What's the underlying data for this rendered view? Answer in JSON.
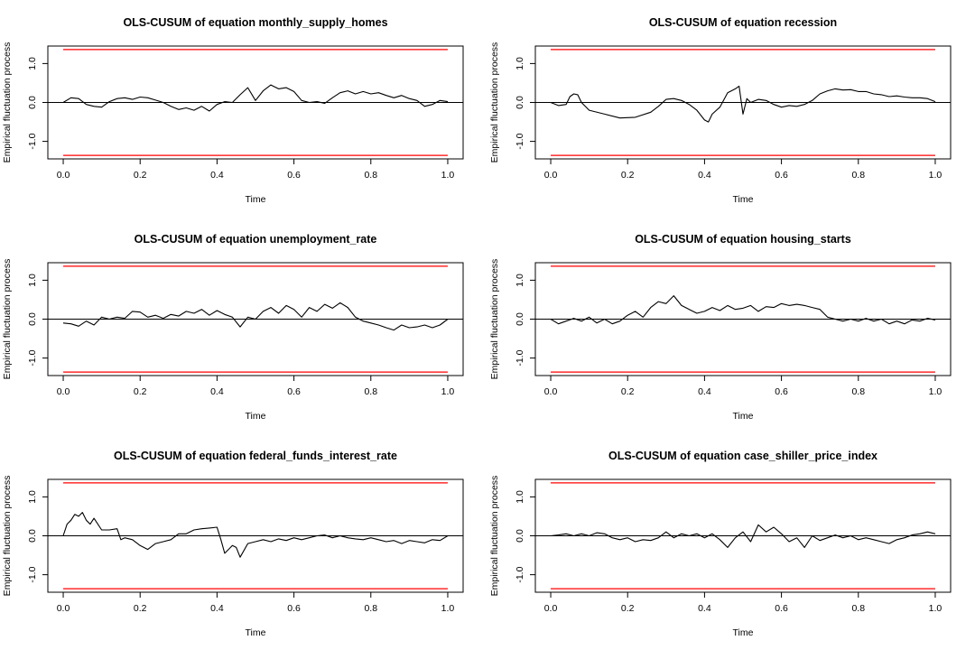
{
  "chart_data": [
    {
      "type": "line",
      "title": "OLS-CUSUM of equation monthly_supply_homes",
      "xlabel": "Time",
      "ylabel": "Empirical fluctuation process",
      "xlim": [
        0,
        1
      ],
      "ylim": [
        -1.45,
        1.45
      ],
      "x_ticks": [
        "0.0",
        "0.2",
        "0.4",
        "0.6",
        "0.8",
        "1.0"
      ],
      "y_ticks": [
        "-1.0",
        "0.0",
        "1.0"
      ],
      "boundary": 1.36,
      "boundary_color": "#ff0000",
      "line_color": "#000000",
      "series": [
        {
          "x": [
            0,
            0.02,
            0.04,
            0.06,
            0.08,
            0.1,
            0.12,
            0.14,
            0.16,
            0.18,
            0.2,
            0.22,
            0.24,
            0.26,
            0.28,
            0.3,
            0.32,
            0.34,
            0.36,
            0.38,
            0.4,
            0.42,
            0.44,
            0.46,
            0.48,
            0.5,
            0.52,
            0.54,
            0.56,
            0.58,
            0.6,
            0.62,
            0.64,
            0.66,
            0.68,
            0.7,
            0.72,
            0.74,
            0.76,
            0.78,
            0.8,
            0.82,
            0.84,
            0.86,
            0.88,
            0.9,
            0.92,
            0.94,
            0.96,
            0.98,
            1.0
          ],
          "values": [
            0,
            0.12,
            0.1,
            -0.05,
            -0.1,
            -0.12,
            0.02,
            0.1,
            0.12,
            0.08,
            0.14,
            0.12,
            0.06,
            0.0,
            -0.1,
            -0.18,
            -0.14,
            -0.2,
            -0.1,
            -0.22,
            -0.05,
            0.02,
            0.0,
            0.2,
            0.38,
            0.05,
            0.3,
            0.45,
            0.35,
            0.38,
            0.28,
            0.05,
            0.0,
            0.02,
            -0.02,
            0.12,
            0.25,
            0.3,
            0.22,
            0.28,
            0.22,
            0.25,
            0.18,
            0.12,
            0.18,
            0.1,
            0.05,
            -0.1,
            -0.05,
            0.05,
            0.02
          ]
        }
      ]
    },
    {
      "type": "line",
      "title": "OLS-CUSUM of equation recession",
      "xlabel": "Time",
      "ylabel": "Empirical fluctuation process",
      "xlim": [
        0,
        1
      ],
      "ylim": [
        -1.45,
        1.45
      ],
      "x_ticks": [
        "0.0",
        "0.2",
        "0.4",
        "0.6",
        "0.8",
        "1.0"
      ],
      "y_ticks": [
        "-1.0",
        "0.0",
        "1.0"
      ],
      "boundary": 1.36,
      "boundary_color": "#ff0000",
      "line_color": "#000000",
      "series": [
        {
          "x": [
            0,
            0.02,
            0.04,
            0.05,
            0.06,
            0.07,
            0.08,
            0.1,
            0.14,
            0.18,
            0.22,
            0.26,
            0.28,
            0.3,
            0.32,
            0.34,
            0.36,
            0.38,
            0.4,
            0.41,
            0.42,
            0.44,
            0.46,
            0.48,
            0.49,
            0.5,
            0.51,
            0.52,
            0.54,
            0.56,
            0.58,
            0.6,
            0.62,
            0.64,
            0.66,
            0.68,
            0.7,
            0.72,
            0.74,
            0.76,
            0.78,
            0.8,
            0.82,
            0.84,
            0.86,
            0.88,
            0.9,
            0.92,
            0.94,
            0.96,
            0.98,
            1.0
          ],
          "values": [
            0,
            -0.08,
            -0.05,
            0.15,
            0.22,
            0.2,
            0.0,
            -0.2,
            -0.3,
            -0.4,
            -0.38,
            -0.25,
            -0.1,
            0.08,
            0.1,
            0.05,
            -0.05,
            -0.2,
            -0.45,
            -0.5,
            -0.3,
            -0.12,
            0.25,
            0.35,
            0.42,
            -0.3,
            0.1,
            0.0,
            0.08,
            0.05,
            -0.05,
            -0.12,
            -0.08,
            -0.1,
            -0.05,
            0.05,
            0.22,
            0.3,
            0.35,
            0.32,
            0.33,
            0.28,
            0.28,
            0.22,
            0.2,
            0.15,
            0.17,
            0.14,
            0.12,
            0.12,
            0.1,
            0.02
          ]
        }
      ]
    },
    {
      "type": "line",
      "title": "OLS-CUSUM of equation unemployment_rate",
      "xlabel": "Time",
      "ylabel": "Empirical fluctuation process",
      "xlim": [
        0,
        1
      ],
      "ylim": [
        -1.45,
        1.45
      ],
      "x_ticks": [
        "0.0",
        "0.2",
        "0.4",
        "0.6",
        "0.8",
        "1.0"
      ],
      "y_ticks": [
        "-1.0",
        "0.0",
        "1.0"
      ],
      "boundary": 1.36,
      "boundary_color": "#ff0000",
      "line_color": "#000000",
      "series": [
        {
          "x": [
            0,
            0.02,
            0.04,
            0.06,
            0.08,
            0.1,
            0.12,
            0.14,
            0.16,
            0.18,
            0.2,
            0.22,
            0.24,
            0.26,
            0.28,
            0.3,
            0.32,
            0.34,
            0.36,
            0.38,
            0.4,
            0.42,
            0.44,
            0.46,
            0.48,
            0.5,
            0.52,
            0.54,
            0.56,
            0.58,
            0.6,
            0.62,
            0.64,
            0.66,
            0.68,
            0.7,
            0.72,
            0.74,
            0.76,
            0.78,
            0.8,
            0.82,
            0.84,
            0.86,
            0.88,
            0.9,
            0.92,
            0.94,
            0.96,
            0.98,
            1.0
          ],
          "values": [
            -0.1,
            -0.12,
            -0.18,
            -0.05,
            -0.15,
            0.05,
            0.0,
            0.05,
            0.02,
            0.2,
            0.18,
            0.05,
            0.1,
            0.02,
            0.12,
            0.08,
            0.2,
            0.15,
            0.25,
            0.1,
            0.22,
            0.12,
            0.05,
            -0.2,
            0.05,
            0.0,
            0.2,
            0.3,
            0.15,
            0.35,
            0.25,
            0.05,
            0.3,
            0.2,
            0.38,
            0.28,
            0.42,
            0.3,
            0.05,
            -0.05,
            -0.1,
            -0.15,
            -0.22,
            -0.28,
            -0.15,
            -0.22,
            -0.2,
            -0.15,
            -0.22,
            -0.15,
            0.0
          ]
        }
      ]
    },
    {
      "type": "line",
      "title": "OLS-CUSUM of equation housing_starts",
      "xlabel": "Time",
      "ylabel": "Empirical fluctuation process",
      "xlim": [
        0,
        1
      ],
      "ylim": [
        -1.45,
        1.45
      ],
      "x_ticks": [
        "0.0",
        "0.2",
        "0.4",
        "0.6",
        "0.8",
        "1.0"
      ],
      "y_ticks": [
        "-1.0",
        "0.0",
        "1.0"
      ],
      "boundary": 1.36,
      "boundary_color": "#ff0000",
      "line_color": "#000000",
      "series": [
        {
          "x": [
            0,
            0.02,
            0.04,
            0.06,
            0.08,
            0.1,
            0.12,
            0.14,
            0.16,
            0.18,
            0.2,
            0.22,
            0.24,
            0.26,
            0.28,
            0.3,
            0.32,
            0.34,
            0.36,
            0.38,
            0.4,
            0.42,
            0.44,
            0.46,
            0.48,
            0.5,
            0.52,
            0.54,
            0.56,
            0.58,
            0.6,
            0.62,
            0.64,
            0.66,
            0.68,
            0.7,
            0.72,
            0.74,
            0.76,
            0.78,
            0.8,
            0.82,
            0.84,
            0.86,
            0.88,
            0.9,
            0.92,
            0.94,
            0.96,
            0.98,
            1.0
          ],
          "values": [
            0,
            -0.12,
            -0.05,
            0.02,
            -0.05,
            0.05,
            -0.1,
            0.0,
            -0.12,
            -0.05,
            0.1,
            0.2,
            0.05,
            0.3,
            0.45,
            0.4,
            0.6,
            0.35,
            0.25,
            0.15,
            0.2,
            0.3,
            0.22,
            0.35,
            0.25,
            0.28,
            0.35,
            0.2,
            0.32,
            0.3,
            0.4,
            0.35,
            0.38,
            0.35,
            0.3,
            0.25,
            0.05,
            0.0,
            -0.05,
            0.0,
            -0.05,
            0.02,
            -0.05,
            0.0,
            -0.12,
            -0.05,
            -0.12,
            -0.02,
            -0.05,
            0.02,
            -0.02
          ]
        }
      ]
    },
    {
      "type": "line",
      "title": "OLS-CUSUM of equation federal_funds_interest_rate",
      "xlabel": "Time",
      "ylabel": "Empirical fluctuation process",
      "xlim": [
        0,
        1
      ],
      "ylim": [
        -1.45,
        1.45
      ],
      "x_ticks": [
        "0.0",
        "0.2",
        "0.4",
        "0.6",
        "0.8",
        "1.0"
      ],
      "y_ticks": [
        "-1.0",
        "0.0",
        "1.0"
      ],
      "boundary": 1.36,
      "boundary_color": "#ff0000",
      "line_color": "#000000",
      "series": [
        {
          "x": [
            0,
            0.01,
            0.02,
            0.03,
            0.04,
            0.05,
            0.06,
            0.07,
            0.08,
            0.1,
            0.12,
            0.14,
            0.15,
            0.16,
            0.18,
            0.2,
            0.22,
            0.24,
            0.26,
            0.28,
            0.3,
            0.32,
            0.34,
            0.36,
            0.38,
            0.4,
            0.41,
            0.42,
            0.44,
            0.45,
            0.46,
            0.48,
            0.5,
            0.52,
            0.54,
            0.56,
            0.58,
            0.6,
            0.62,
            0.64,
            0.66,
            0.68,
            0.7,
            0.72,
            0.74,
            0.76,
            0.78,
            0.8,
            0.82,
            0.84,
            0.86,
            0.88,
            0.9,
            0.92,
            0.94,
            0.96,
            0.98,
            1.0
          ],
          "values": [
            0,
            0.3,
            0.4,
            0.55,
            0.5,
            0.6,
            0.4,
            0.3,
            0.45,
            0.15,
            0.15,
            0.18,
            -0.1,
            -0.05,
            -0.1,
            -0.25,
            -0.35,
            -0.2,
            -0.15,
            -0.1,
            0.05,
            0.05,
            0.15,
            0.18,
            0.2,
            0.22,
            -0.1,
            -0.45,
            -0.25,
            -0.3,
            -0.55,
            -0.2,
            -0.15,
            -0.1,
            -0.15,
            -0.08,
            -0.12,
            -0.05,
            -0.1,
            -0.05,
            0.0,
            0.02,
            -0.05,
            0.0,
            -0.05,
            -0.08,
            -0.1,
            -0.05,
            -0.1,
            -0.15,
            -0.12,
            -0.2,
            -0.12,
            -0.15,
            -0.18,
            -0.1,
            -0.12,
            0.0
          ]
        }
      ]
    },
    {
      "type": "line",
      "title": "OLS-CUSUM of equation case_shiller_price_index",
      "xlabel": "Time",
      "ylabel": "Empirical fluctuation process",
      "xlim": [
        0,
        1
      ],
      "ylim": [
        -1.45,
        1.45
      ],
      "x_ticks": [
        "0.0",
        "0.2",
        "0.4",
        "0.6",
        "0.8",
        "1.0"
      ],
      "y_ticks": [
        "-1.0",
        "0.0",
        "1.0"
      ],
      "boundary": 1.36,
      "boundary_color": "#ff0000",
      "line_color": "#000000",
      "series": [
        {
          "x": [
            0,
            0.02,
            0.04,
            0.06,
            0.08,
            0.1,
            0.12,
            0.14,
            0.16,
            0.18,
            0.2,
            0.22,
            0.24,
            0.26,
            0.28,
            0.3,
            0.32,
            0.34,
            0.36,
            0.38,
            0.4,
            0.42,
            0.44,
            0.46,
            0.48,
            0.5,
            0.52,
            0.54,
            0.56,
            0.58,
            0.6,
            0.62,
            0.64,
            0.66,
            0.68,
            0.7,
            0.72,
            0.74,
            0.76,
            0.78,
            0.8,
            0.82,
            0.84,
            0.86,
            0.88,
            0.9,
            0.92,
            0.94,
            0.96,
            0.98,
            1.0
          ],
          "values": [
            0,
            0.02,
            0.05,
            0.0,
            0.05,
            0.0,
            0.08,
            0.05,
            -0.05,
            -0.1,
            -0.05,
            -0.15,
            -0.1,
            -0.12,
            -0.05,
            0.1,
            -0.05,
            0.05,
            0.0,
            0.05,
            -0.05,
            0.05,
            -0.1,
            -0.3,
            -0.05,
            0.1,
            -0.15,
            0.28,
            0.1,
            0.22,
            0.05,
            -0.15,
            -0.05,
            -0.3,
            0.0,
            -0.12,
            -0.05,
            0.02,
            -0.05,
            0.0,
            -0.1,
            -0.05,
            -0.1,
            -0.15,
            -0.2,
            -0.1,
            -0.05,
            0.02,
            0.05,
            0.1,
            0.05
          ]
        }
      ]
    }
  ]
}
